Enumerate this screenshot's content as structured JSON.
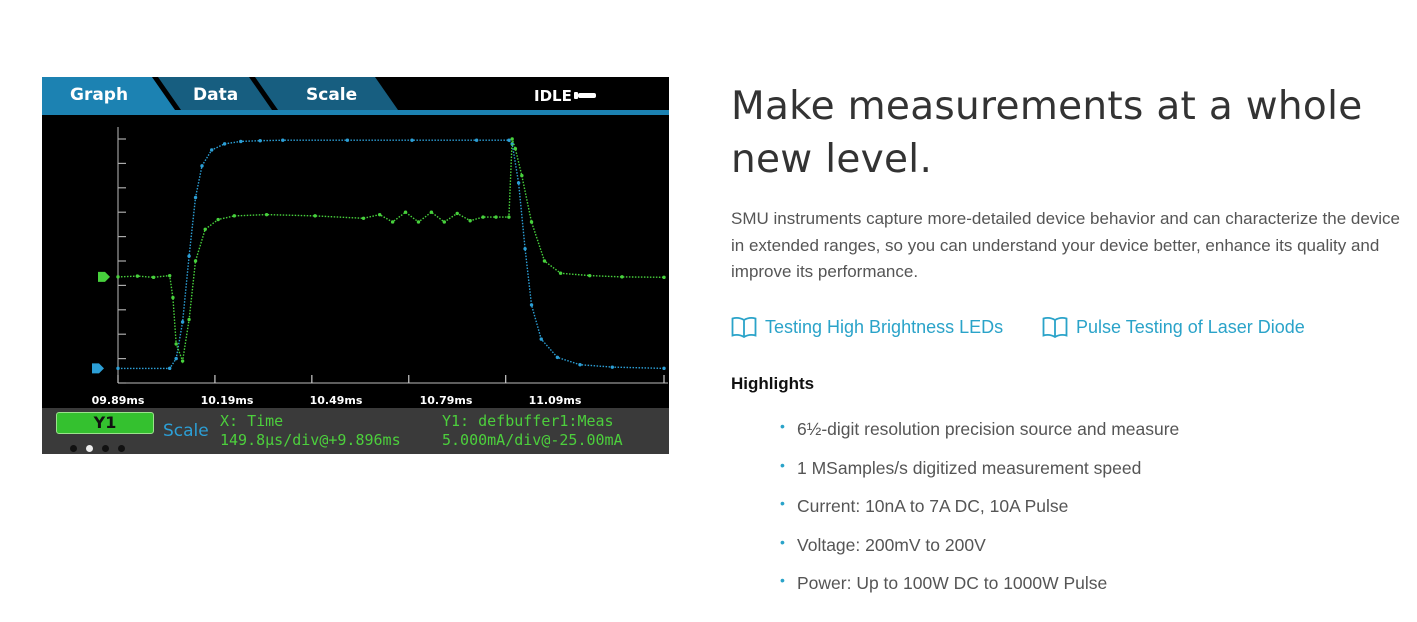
{
  "instrument": {
    "tabs": [
      {
        "label": "Graph",
        "active": true
      },
      {
        "label": "Data",
        "active": false
      },
      {
        "label": "Scale",
        "active": false
      }
    ],
    "status": "IDLE",
    "status_icon": "arrow-icon",
    "x_ticks": [
      "09.89ms",
      "10.19ms",
      "10.49ms",
      "10.79ms",
      "11.09ms"
    ],
    "footer": {
      "trace_button": "Y1",
      "scale_label": "Scale",
      "x_title": "X: Time",
      "x_scale": "149.8µs/div@+9.896ms",
      "y_title": "Y1: defbuffer1:Meas",
      "y_scale": "5.000mA/div@-25.00mA",
      "page_dots": 4,
      "active_dot": 2
    },
    "colors": {
      "tab": "#1b6f95",
      "current_trace": "#2c9fd6",
      "voltage_trace": "#47d13c",
      "footer_text": "#4ccf3c"
    }
  },
  "chart_data": {
    "type": "line",
    "x_unit": "ms",
    "x_ticks": [
      9.89,
      10.19,
      10.49,
      10.79,
      11.09
    ],
    "xlim": [
      9.89,
      11.58
    ],
    "series": [
      {
        "color": "#2c9fd6",
        "x": [
          9.89,
          10.05,
          10.07,
          10.09,
          10.11,
          10.13,
          10.15,
          10.18,
          10.22,
          10.27,
          10.33,
          10.4,
          10.6,
          10.8,
          11.0,
          11.1,
          11.11,
          11.13,
          11.15,
          11.17,
          11.2,
          11.25,
          11.32,
          11.42,
          11.58
        ],
        "y": [
          0.6,
          0.6,
          1.0,
          2.5,
          5.2,
          7.6,
          8.9,
          9.55,
          9.8,
          9.9,
          9.93,
          9.95,
          9.95,
          9.95,
          9.95,
          9.95,
          9.8,
          8.2,
          5.5,
          3.2,
          1.8,
          1.05,
          0.75,
          0.65,
          0.6
        ]
      },
      {
        "color": "#47d13c",
        "x": [
          9.89,
          9.95,
          10.0,
          10.05,
          10.06,
          10.07,
          10.09,
          10.11,
          10.13,
          10.16,
          10.2,
          10.25,
          10.35,
          10.5,
          10.65,
          10.7,
          10.74,
          10.78,
          10.82,
          10.86,
          10.9,
          10.94,
          10.98,
          11.02,
          11.06,
          11.1,
          11.11,
          11.12,
          11.14,
          11.17,
          11.21,
          11.26,
          11.35,
          11.45,
          11.58
        ],
        "y": [
          4.35,
          4.38,
          4.33,
          4.4,
          3.5,
          1.6,
          0.9,
          2.6,
          5.0,
          6.3,
          6.7,
          6.85,
          6.9,
          6.85,
          6.75,
          6.9,
          6.6,
          7.0,
          6.6,
          7.0,
          6.6,
          6.95,
          6.65,
          6.8,
          6.8,
          6.8,
          10.0,
          9.6,
          8.5,
          6.6,
          5.0,
          4.5,
          4.4,
          4.35,
          4.33
        ]
      }
    ]
  },
  "content": {
    "headline": "Make measurements at a whole new level.",
    "intro": "SMU instruments capture more-detailed device behavior and can characterize the device in extended ranges, so you can understand your device better, enhance its quality and improve its performance.",
    "links": [
      {
        "label": "Testing High Brightness LEDs",
        "icon": "book-icon"
      },
      {
        "label": "Pulse Testing of Laser Diode",
        "icon": "book-icon"
      }
    ],
    "highlights_title": "Highlights",
    "highlights": [
      "6½-digit resolution precision source and measure",
      "1 MSamples/s digitized measurement speed",
      "Current: 10nA to 7A DC, 10A Pulse",
      "Voltage: 200mV to 200V",
      "Power: Up to 100W DC to 1000W Pulse"
    ],
    "colors": {
      "link": "#2aa3c9",
      "headline": "#333333",
      "body": "#555555"
    }
  }
}
